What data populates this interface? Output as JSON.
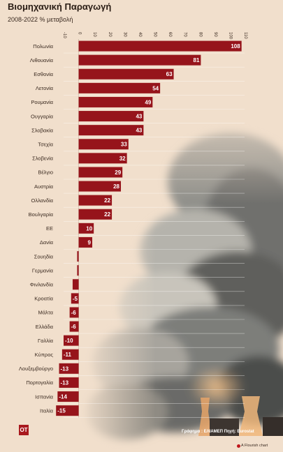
{
  "chart_data": {
    "type": "bar",
    "orientation": "horizontal",
    "title": "Βιομηχανική Παραγωγή",
    "subtitle": "2008-2022 % μεταβολή",
    "categories": [
      "Πολωνία",
      "Λιθουανία",
      "Εσθονία",
      "Λετονία",
      "Ρουμανία",
      "Ουγγαρία",
      "Σλοβακία",
      "Τσεχία",
      "Σλοβενία",
      "Βέλγιο",
      "Αυστρία",
      "Ολλανδία",
      "Βουλγαρία",
      "ΕΕ",
      "Δανία",
      "Σουηδία",
      "Γερμανία",
      "Φινλανδία",
      "Κροατία",
      "Μάλτα",
      "Ελλάδα",
      "Γαλλία",
      "Κύπρος",
      "Λουξεμβούργο",
      "Πορτογαλία",
      "Ισπανία",
      "Ιταλία"
    ],
    "values": [
      108,
      81,
      63,
      54,
      49,
      43,
      43,
      33,
      32,
      29,
      28,
      22,
      22,
      10,
      9,
      -1,
      -1,
      -4,
      -5,
      -6,
      -6,
      -10,
      -11,
      -13,
      -13,
      -14,
      -15
    ],
    "labels": [
      "108",
      "81",
      "63",
      "54",
      "49",
      "43",
      "43",
      "33",
      "32",
      "29",
      "28",
      "22",
      "22",
      "10",
      "9",
      "",
      "",
      "",
      "-5",
      "-6",
      "-6",
      "-10",
      "-11",
      "-13",
      "-13",
      "-14",
      "-15"
    ],
    "xlim": [
      -10,
      110
    ],
    "xticks": [
      -10,
      0,
      10,
      20,
      30,
      40,
      50,
      60,
      70,
      80,
      90,
      100,
      110
    ],
    "tick_position": "top",
    "grid": true,
    "bar_color": "#96141b"
  },
  "footer": {
    "logo": "OT",
    "credit": "Γράφημα : ΕΛΙΑΜΕΠ Πηγή: Eurostat",
    "brand": "A Flourish chart"
  },
  "colors": {
    "background": "#f1dfcc",
    "bar": "#96141b",
    "logo": "#a8191e"
  }
}
